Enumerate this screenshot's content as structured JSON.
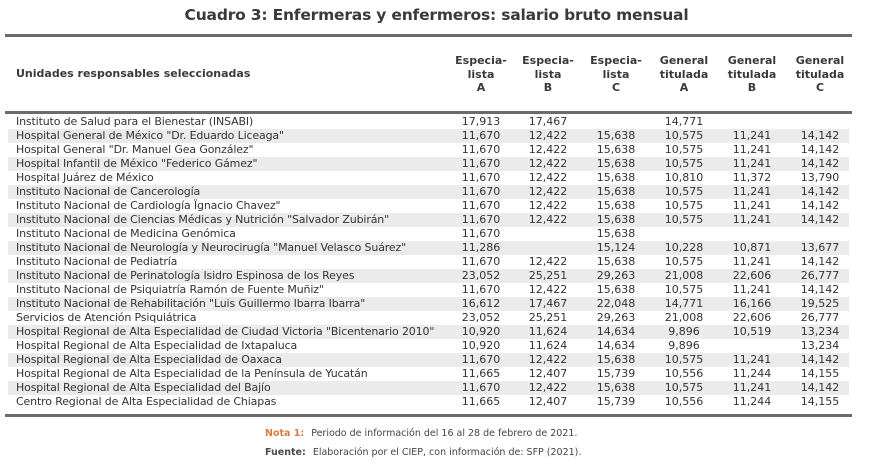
{
  "title": "Cuadro 3: Enfermeras y enfermeros: salario bruto mensual",
  "table": {
    "row_header": "Unidades responsables seleccionadas",
    "columns": [
      {
        "line1": "Especia-",
        "line2": "lista",
        "line3": "A"
      },
      {
        "line1": "Especia-",
        "line2": "lista",
        "line3": "B"
      },
      {
        "line1": "Especia-",
        "line2": "lista",
        "line3": "C"
      },
      {
        "line1": "General",
        "line2": "titulada",
        "line3": "A"
      },
      {
        "line1": "General",
        "line2": "titulada",
        "line3": "B"
      },
      {
        "line1": "General",
        "line2": "titulada",
        "line3": "C"
      }
    ],
    "rows": [
      {
        "name": "Instituto de Salud para el Bienestar (INSABI)",
        "values": [
          "17,913",
          "17,467",
          "",
          "14,771",
          "",
          ""
        ]
      },
      {
        "name": "Hospital General de México \"Dr. Eduardo Liceaga\"",
        "values": [
          "11,670",
          "12,422",
          "15,638",
          "10,575",
          "11,241",
          "14,142"
        ]
      },
      {
        "name": "Hospital General \"Dr. Manuel Gea González\"",
        "values": [
          "11,670",
          "12,422",
          "15,638",
          "10,575",
          "11,241",
          "14,142"
        ]
      },
      {
        "name": "Hospital Infantil de México \"Federico Gámez\"",
        "values": [
          "11,670",
          "12,422",
          "15,638",
          "10,575",
          "11,241",
          "14,142"
        ]
      },
      {
        "name": "Hospital Juárez de México",
        "values": [
          "11,670",
          "12,422",
          "15,638",
          "10,810",
          "11,372",
          "13,790"
        ]
      },
      {
        "name": "Instituto Nacional de Cancerología",
        "values": [
          "11,670",
          "12,422",
          "15,638",
          "10,575",
          "11,241",
          "14,142"
        ]
      },
      {
        "name": "Instituto Nacional de Cardiología Ïgnacio Chavez\"",
        "values": [
          "11,670",
          "12,422",
          "15,638",
          "10,575",
          "11,241",
          "14,142"
        ]
      },
      {
        "name": "Instituto Nacional de Ciencias Médicas y Nutrición \"Salvador Zubirán\"",
        "values": [
          "11,670",
          "12,422",
          "15,638",
          "10,575",
          "11,241",
          "14,142"
        ]
      },
      {
        "name": "Instituto Nacional de Medicina Genómica",
        "values": [
          "11,670",
          "",
          "15,638",
          "",
          "",
          ""
        ]
      },
      {
        "name": "Instituto Nacional de Neurología y Neurocirugía \"Manuel Velasco Suárez\"",
        "values": [
          "11,286",
          "",
          "15,124",
          "10,228",
          "10,871",
          "13,677"
        ]
      },
      {
        "name": "Instituto Nacional de Pediatría",
        "values": [
          "11,670",
          "12,422",
          "15,638",
          "10,575",
          "11,241",
          "14,142"
        ]
      },
      {
        "name": "Instituto Nacional de Perinatología Isidro Espinosa de los Reyes",
        "values": [
          "23,052",
          "25,251",
          "29,263",
          "21,008",
          "22,606",
          "26,777"
        ]
      },
      {
        "name": "Instituto Nacional de Psiquiatría Ramón de Fuente Muñiz\"",
        "values": [
          "11,670",
          "12,422",
          "15,638",
          "10,575",
          "11,241",
          "14,142"
        ]
      },
      {
        "name": "Instituto Nacional de Rehabilitación \"Luis Guillermo Ibarra Ibarra\"",
        "values": [
          "16,612",
          "17,467",
          "22,048",
          "14,771",
          "16,166",
          "19,525"
        ]
      },
      {
        "name": "Servicios de Atención Psiquiátrica",
        "values": [
          "23,052",
          "25,251",
          "29,263",
          "21,008",
          "22,606",
          "26,777"
        ]
      },
      {
        "name": "Hospital Regional de Alta Especialidad de Ciudad Victoria \"Bicentenario 2010\"",
        "values": [
          "10,920",
          "11,624",
          "14,634",
          "9,896",
          "10,519",
          "13,234"
        ]
      },
      {
        "name": "Hospital Regional de Alta Especialidad de Ixtapaluca",
        "values": [
          "10,920",
          "11,624",
          "14,634",
          "9,896",
          "",
          "13,234"
        ]
      },
      {
        "name": "Hospital Regional de Alta Especialidad de Oaxaca",
        "values": [
          "11,670",
          "12,422",
          "15,638",
          "10,575",
          "11,241",
          "14,142"
        ]
      },
      {
        "name": "Hospital Regional de Alta Especialidad de la Península de Yucatán",
        "values": [
          "11,665",
          "12,407",
          "15,739",
          "10,556",
          "11,244",
          "14,155"
        ]
      },
      {
        "name": "Hospital Regional de Alta Especialidad del Bajío",
        "values": [
          "11,670",
          "12,422",
          "15,638",
          "10,575",
          "11,241",
          "14,142"
        ]
      },
      {
        "name": "Centro Regional de Alta Especialidad de Chiapas",
        "values": [
          "11,665",
          "12,407",
          "15,739",
          "10,556",
          "11,244",
          "14,155"
        ]
      }
    ]
  },
  "notes": {
    "nota_label": "Nota 1:",
    "nota_text": "Periodo de información del 16 al 28 de febrero de 2021.",
    "fuente_label": "Fuente:",
    "fuente_text": "Elaboración por el CIEP, con información de: SFP (2021)."
  },
  "colors": {
    "accent_note": "#e07a3c",
    "rule": "#6b6b6b",
    "stripe": "#ebebeb"
  }
}
